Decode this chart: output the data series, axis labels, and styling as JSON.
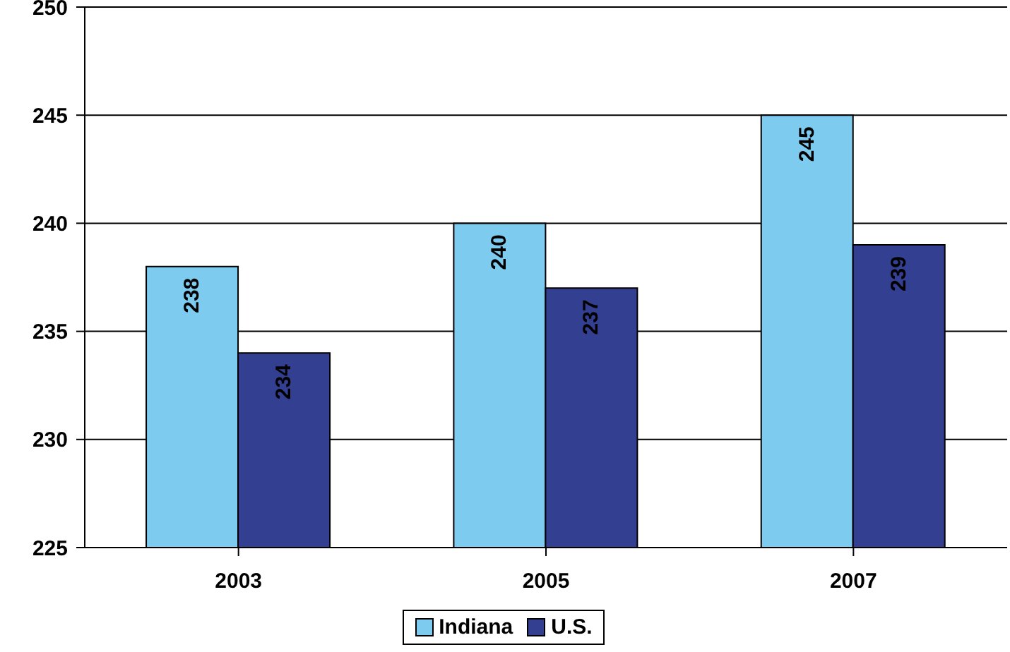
{
  "chart_data": {
    "type": "bar",
    "categories": [
      "2003",
      "2005",
      "2007"
    ],
    "series": [
      {
        "name": "Indiana",
        "color": "#7ecbf0",
        "values": [
          238,
          240,
          245
        ]
      },
      {
        "name": "U.S.",
        "color": "#333f91",
        "values": [
          234,
          237,
          239
        ]
      }
    ],
    "ylim": [
      225,
      250
    ],
    "yticks": [
      225,
      230,
      235,
      240,
      245,
      250
    ],
    "grid": "y",
    "legend": "bottom",
    "data_labels": true
  }
}
